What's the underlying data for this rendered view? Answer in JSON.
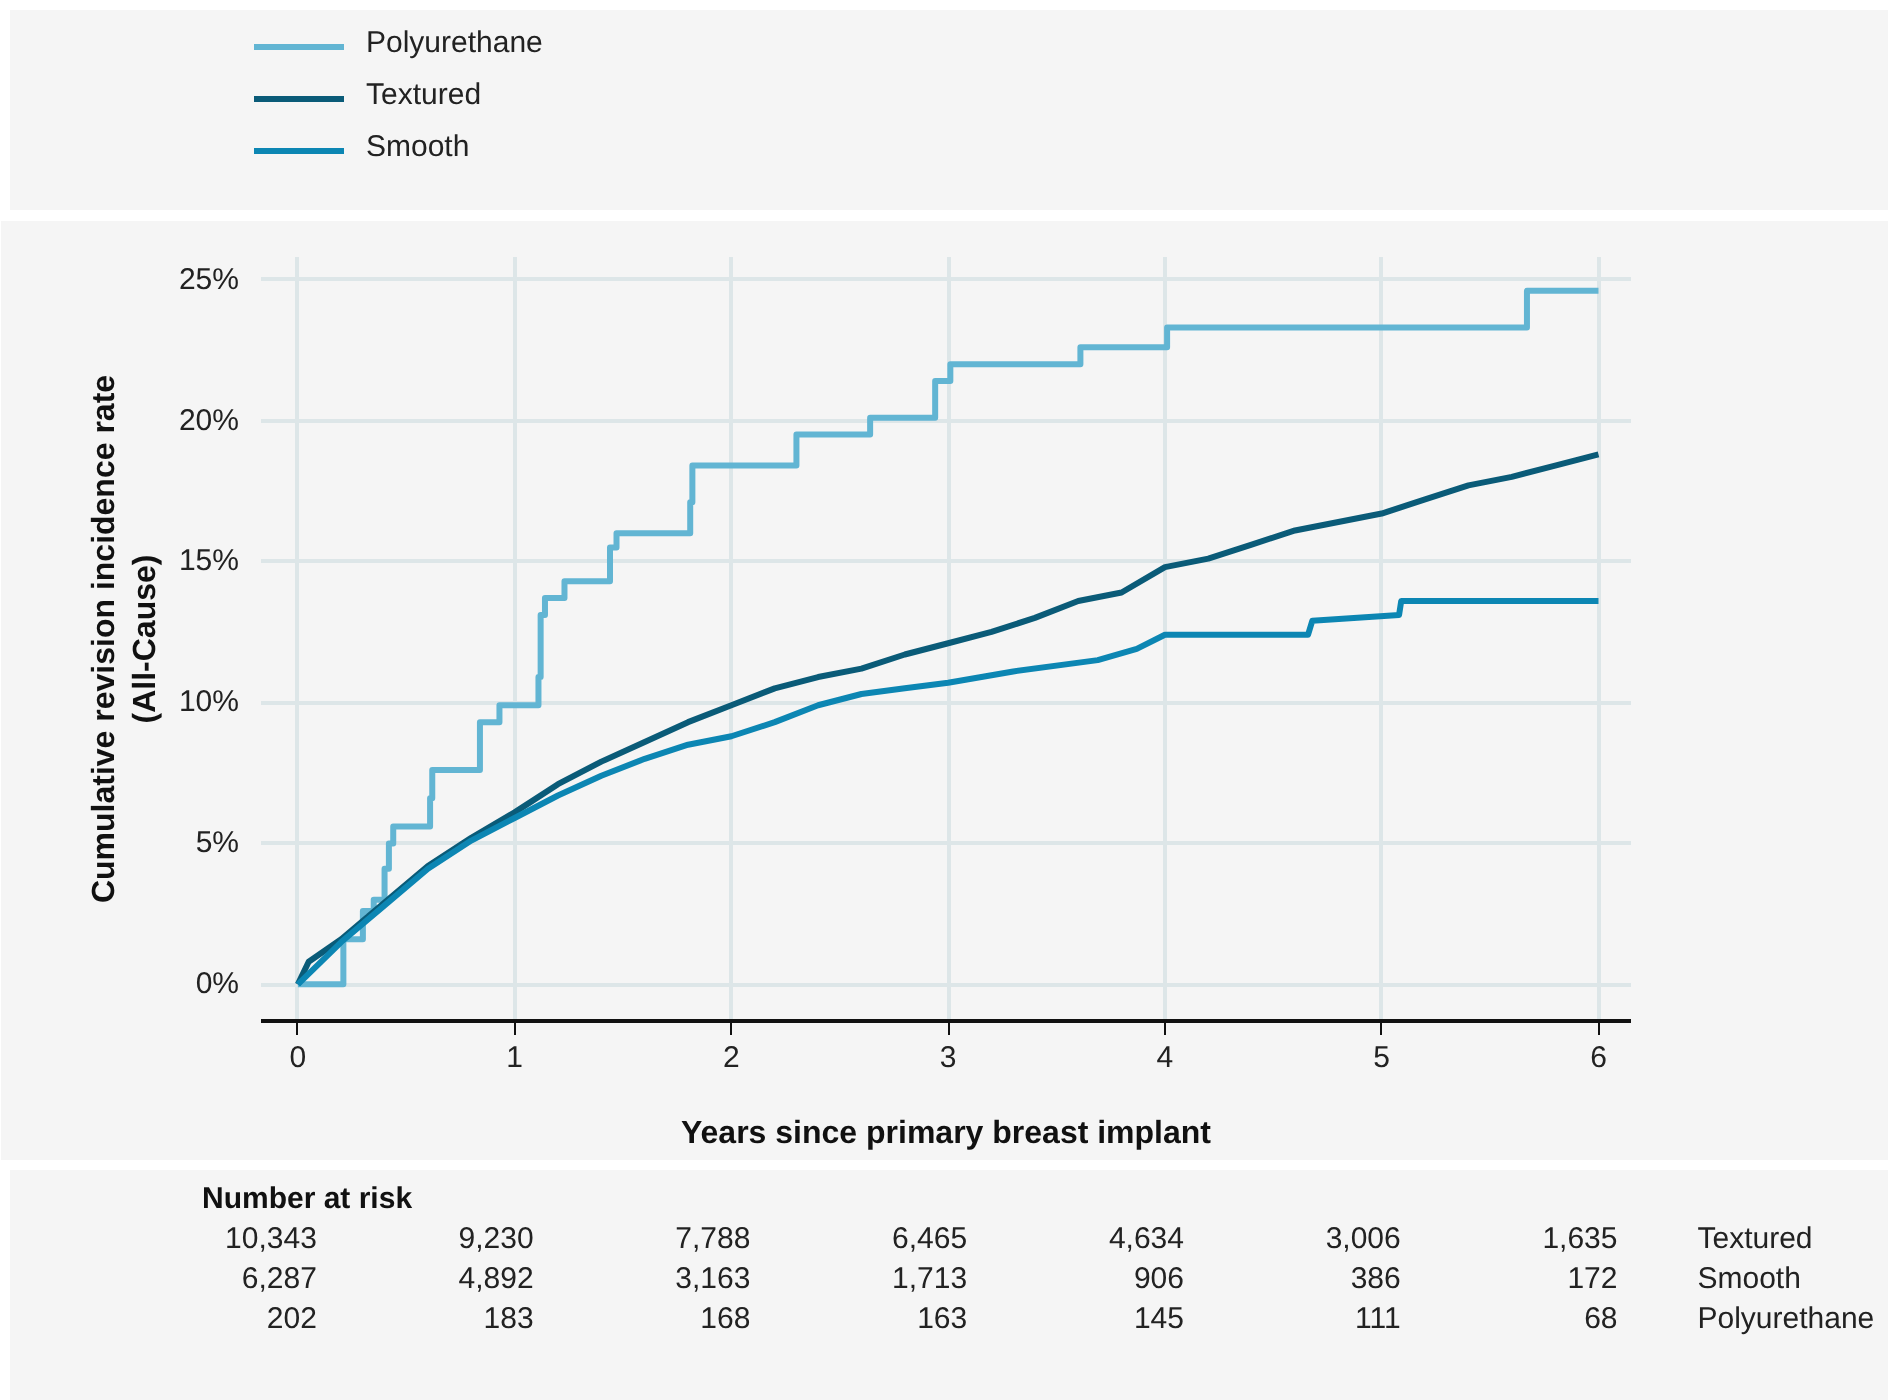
{
  "chart_data": {
    "type": "line",
    "xlabel": "Years since primary breast implant",
    "ylabel": "Cumulative revision incidence rate\n(All-Cause)",
    "xlim": [
      -0.17,
      6.15
    ],
    "ylim": [
      -1.3,
      25.8
    ],
    "xticks": [
      0,
      1,
      2,
      3,
      4,
      5,
      6
    ],
    "yticks": [
      {
        "value": 0,
        "label": "0%"
      },
      {
        "value": 5,
        "label": "5%"
      },
      {
        "value": 10,
        "label": "10%"
      },
      {
        "value": 15,
        "label": "15%"
      },
      {
        "value": 20,
        "label": "20%"
      },
      {
        "value": 25,
        "label": "25%"
      }
    ],
    "grid": true,
    "legend": "top left",
    "line_style": "solid",
    "marker": "none",
    "series": [
      {
        "name": "Polyurethane",
        "type": "step",
        "color": "#62b5d3",
        "x": [
          0,
          0.21,
          0.21,
          0.3,
          0.35,
          0.4,
          0.42,
          0.44,
          0.61,
          0.62,
          0.84,
          0.93,
          1.11,
          1.12,
          1.14,
          1.23,
          1.44,
          1.47,
          1.81,
          1.82,
          2.3,
          2.64,
          2.94,
          3.01,
          3.61,
          4.01,
          5.67,
          6.0
        ],
        "values": [
          0,
          0.5,
          1.6,
          2.6,
          3.0,
          4.1,
          5.0,
          5.6,
          6.6,
          7.6,
          9.3,
          9.9,
          10.9,
          13.1,
          13.7,
          14.3,
          15.5,
          16.0,
          17.1,
          18.4,
          19.5,
          20.1,
          21.4,
          22.0,
          22.6,
          23.3,
          24.6,
          24.6
        ]
      },
      {
        "name": "Textured",
        "color": "#0a5b78",
        "x": [
          0,
          0.05,
          0.2,
          0.4,
          0.6,
          0.8,
          1.0,
          1.2,
          1.4,
          1.6,
          1.8,
          2.0,
          2.2,
          2.4,
          2.6,
          2.8,
          3.0,
          3.2,
          3.4,
          3.6,
          3.8,
          4.0,
          4.2,
          4.4,
          4.6,
          4.8,
          5.0,
          5.2,
          5.4,
          5.6,
          5.8,
          6.0
        ],
        "values": [
          0,
          0.8,
          1.6,
          2.9,
          4.2,
          5.2,
          6.1,
          7.1,
          7.9,
          8.6,
          9.3,
          9.9,
          10.5,
          10.9,
          11.2,
          11.7,
          12.1,
          12.5,
          13.0,
          13.6,
          13.9,
          14.8,
          15.1,
          15.6,
          16.1,
          16.4,
          16.7,
          17.2,
          17.7,
          18.0,
          18.4,
          18.8
        ]
      },
      {
        "name": "Smooth",
        "color": "#0c86b3",
        "x": [
          0,
          0.2,
          0.4,
          0.6,
          0.8,
          1.0,
          1.2,
          1.4,
          1.6,
          1.8,
          2.0,
          2.2,
          2.4,
          2.6,
          2.8,
          3.0,
          3.3,
          3.69,
          3.87,
          4.0,
          4.66,
          4.68,
          5.08,
          5.09,
          6.0
        ],
        "values": [
          0,
          1.5,
          2.8,
          4.1,
          5.1,
          5.9,
          6.7,
          7.4,
          8.0,
          8.5,
          8.8,
          9.3,
          9.9,
          10.3,
          10.5,
          10.7,
          11.1,
          11.5,
          11.9,
          12.4,
          12.4,
          12.9,
          13.1,
          13.6,
          13.6
        ]
      }
    ],
    "annotations": [
      "Number at risk",
      "10,343",
      "9,230",
      "7,788",
      "6,465",
      "4,634",
      "3,006",
      "1,635",
      "Textured",
      "6,287",
      "4,892",
      "3,163",
      "1,713",
      "906",
      "386",
      "172",
      "Smooth",
      "202",
      "183",
      "168",
      "163",
      "145",
      "111",
      "68",
      "Polyurethane"
    ]
  }
}
